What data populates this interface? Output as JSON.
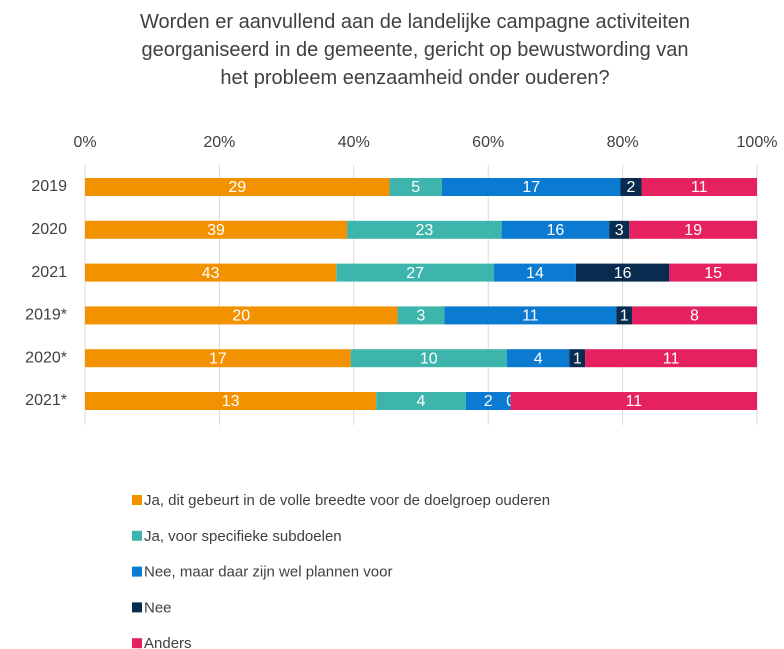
{
  "chart_data": {
    "type": "bar",
    "orientation": "horizontal",
    "stacked": "percent",
    "title": "Worden er aanvullend aan de landelijke campagne activiteiten georganiseerd in de gemeente, gericht op bewustwording van het probleem eenzaamheid onder ouderen?",
    "categories": [
      "2019",
      "2020",
      "2021",
      "2019*",
      "2020*",
      "2021*"
    ],
    "series": [
      {
        "name": "Ja, dit gebeurt in de volle breedte voor de doelgroep ouderen",
        "color": "#f39200",
        "values": [
          29,
          39,
          43,
          20,
          17,
          13
        ]
      },
      {
        "name": "Ja, voor specifieke subdoelen",
        "color": "#3db5ad",
        "values": [
          5,
          23,
          27,
          3,
          10,
          4
        ]
      },
      {
        "name": "Nee, maar daar zijn wel plannen voor",
        "color": "#0b7ad1",
        "values": [
          17,
          16,
          14,
          11,
          4,
          2
        ]
      },
      {
        "name": "Nee",
        "color": "#0a2b50",
        "values": [
          2,
          3,
          16,
          1,
          1,
          0
        ]
      },
      {
        "name": "Anders",
        "color": "#e6215f",
        "values": [
          11,
          19,
          15,
          8,
          11,
          11
        ]
      }
    ],
    "xlim": [
      0,
      100
    ],
    "xticks": [
      {
        "value": 0,
        "label": "0%"
      },
      {
        "value": 20,
        "label": "20%"
      },
      {
        "value": 40,
        "label": "40%"
      },
      {
        "value": 60,
        "label": "60%"
      },
      {
        "value": 80,
        "label": "80%"
      },
      {
        "value": 100,
        "label": "100%"
      }
    ],
    "grid": true,
    "legend": "bottom"
  }
}
